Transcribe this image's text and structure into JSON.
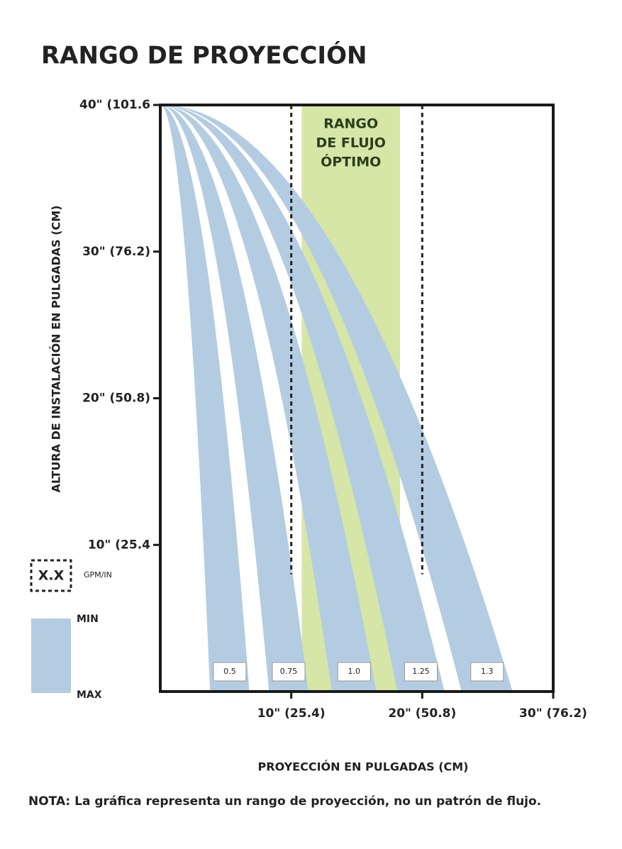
{
  "chart_data": {
    "type": "range-fan",
    "title": "RANGO DE PROYECCIÓN",
    "x_label": "PROYECCIÓN EN PULGADAS (CM)",
    "y_label": "ALTURA DE INSTALACIÓN EN PULGADAS (CM)",
    "note": "NOTA: La gráfica representa un rango de proyección, no un patrón de flujo.",
    "xlim": [
      0,
      30
    ],
    "ylim": [
      0,
      40
    ],
    "xticks": [
      {
        "value": 10,
        "label": "10\" (25.4)"
      },
      {
        "value": 20,
        "label": "20\" (50.8)"
      },
      {
        "value": 30,
        "label": "30\" (76.2)"
      }
    ],
    "yticks": [
      {
        "value": 10,
        "label": "10\" (25.4"
      },
      {
        "value": 20,
        "label": "20\" (50.8)"
      },
      {
        "value": 30,
        "label": "30\" (76.2)"
      },
      {
        "value": 40,
        "label": "40\" (101.6"
      }
    ],
    "optimal_range": {
      "lines": [
        "RANGO",
        "DE FLUJO",
        "ÓPTIMO"
      ],
      "x": [
        10.8,
        18.3
      ],
      "color": "#d5e6a6"
    },
    "reference_lines": {
      "x": [
        10,
        20
      ],
      "y": [
        8,
        40
      ]
    },
    "color": "#b4cce2",
    "series": [
      {
        "name": "0.5",
        "min": 3.8,
        "max": 6.8
      },
      {
        "name": "0.75",
        "min": 8.3,
        "max": 11.3
      },
      {
        "name": "1.0",
        "min": 13.1,
        "max": 16.5
      },
      {
        "name": "1.25",
        "min": 18.1,
        "max": 21.7
      },
      {
        "name": "1.3",
        "min": 23.0,
        "max": 26.9
      }
    ],
    "legend": {
      "box": "X.X",
      "box_label": "GPM/IN",
      "min": "MIN",
      "max": "MAX"
    }
  }
}
